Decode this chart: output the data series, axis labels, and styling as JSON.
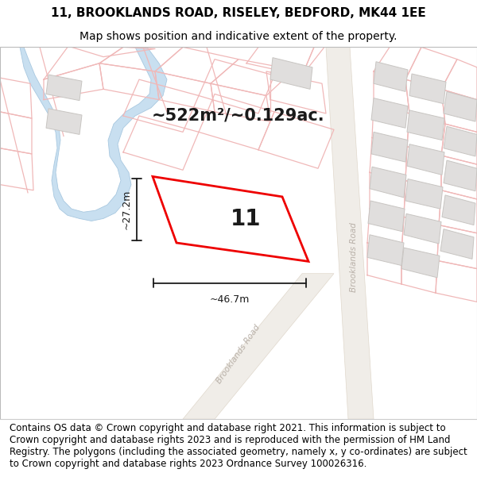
{
  "title_line1": "11, BROOKLANDS ROAD, RISELEY, BEDFORD, MK44 1EE",
  "title_line2": "Map shows position and indicative extent of the property.",
  "footer_text": "Contains OS data © Crown copyright and database right 2021. This information is subject to Crown copyright and database rights 2023 and is reproduced with the permission of HM Land Registry. The polygons (including the associated geometry, namely x, y co-ordinates) are subject to Crown copyright and database rights 2023 Ordnance Survey 100026316.",
  "area_text": "~522m²/~0.129ac.",
  "width_label": "~46.7m",
  "height_label": "~27.2m",
  "property_number": "11",
  "map_bg": "#ffffff",
  "plot_line_color": "#f0b8b8",
  "building_fill": "#e0dedd",
  "building_border": "#c8c5c2",
  "river_color": "#c8dff0",
  "river_border": "#a8c8e0",
  "road_label_color": "#b8b0a8",
  "property_border": "#ee0000",
  "dim_color": "#1a1a1a",
  "title_fontsize": 11,
  "subtitle_fontsize": 10,
  "area_fontsize": 15,
  "footer_fontsize": 8.5,
  "number_fontsize": 20,
  "dim_fontsize": 9
}
